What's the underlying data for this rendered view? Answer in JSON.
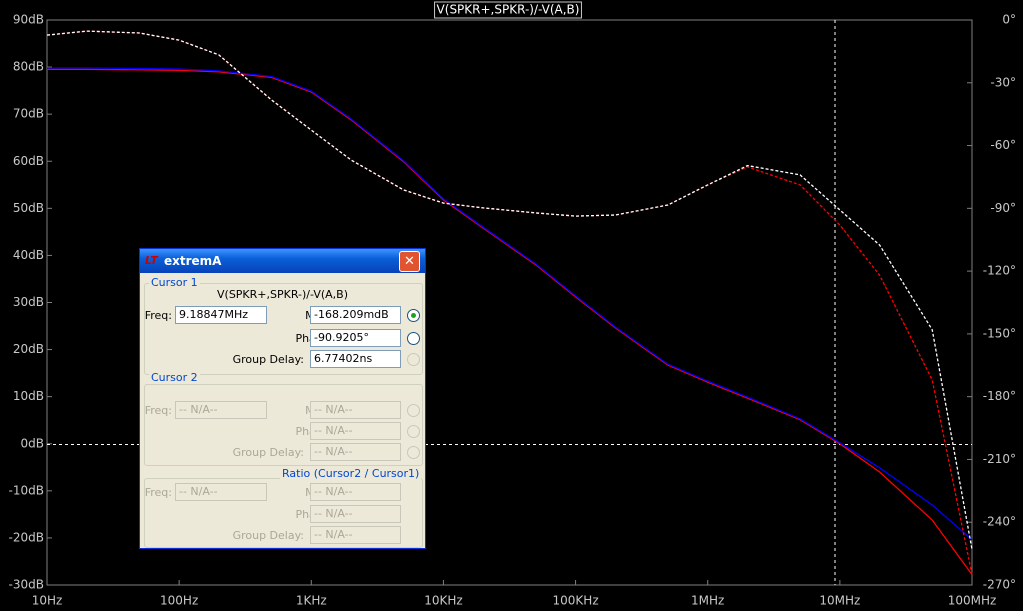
{
  "chart_data": {
    "type": "line",
    "title": "V(SPKR+,SPKR-)/-V(A,B)",
    "x": [
      10,
      20,
      50,
      100,
      200,
      500,
      1000,
      2000,
      5000,
      10000,
      20000,
      50000,
      100000,
      200000,
      500000,
      1000000,
      2000000,
      5000000,
      10000000,
      20000000,
      50000000,
      100000000
    ],
    "xlim": [
      10,
      100000000
    ],
    "log_x": true,
    "xticks": [
      {
        "value": 10,
        "label": "10Hz"
      },
      {
        "value": 100,
        "label": "100Hz"
      },
      {
        "value": 1000,
        "label": "1KHz"
      },
      {
        "value": 10000,
        "label": "10KHz"
      },
      {
        "value": 100000,
        "label": "100KHz"
      },
      {
        "value": 1000000,
        "label": "1MHz"
      },
      {
        "value": 10000000,
        "label": "10MHz"
      },
      {
        "value": 100000000,
        "label": "100MHz"
      }
    ],
    "ylim": [
      -30,
      90
    ],
    "yticks": [
      {
        "value": 90,
        "label": "90dB"
      },
      {
        "value": 80,
        "label": "80dB"
      },
      {
        "value": 70,
        "label": "70dB"
      },
      {
        "value": 60,
        "label": "60dB"
      },
      {
        "value": 50,
        "label": "50dB"
      },
      {
        "value": 40,
        "label": "40dB"
      },
      {
        "value": 30,
        "label": "30dB"
      },
      {
        "value": 20,
        "label": "20dB"
      },
      {
        "value": 10,
        "label": "10dB"
      },
      {
        "value": 0,
        "label": "0dB"
      },
      {
        "value": -10,
        "label": "-10dB"
      },
      {
        "value": -20,
        "label": "-20dB"
      },
      {
        "value": -30,
        "label": "-30dB"
      }
    ],
    "y2lim": [
      -270,
      0
    ],
    "y2ticks": [
      {
        "value": 0,
        "label": "0°"
      },
      {
        "value": -30,
        "label": "-30°"
      },
      {
        "value": -60,
        "label": "-60°"
      },
      {
        "value": -90,
        "label": "-90°"
      },
      {
        "value": -120,
        "label": "-120°"
      },
      {
        "value": -150,
        "label": "-150°"
      },
      {
        "value": -180,
        "label": "-180°"
      },
      {
        "value": -210,
        "label": "-210°"
      },
      {
        "value": -240,
        "label": "-240°"
      },
      {
        "value": -270,
        "label": "-270°"
      }
    ],
    "series": [
      {
        "color": "#ff0000",
        "style": "solid",
        "values": [
          79.5,
          79.5,
          79.4,
          79.3,
          79,
          77.8,
          74.7,
          68.8,
          59.9,
          51.8,
          45.8,
          38,
          31.2,
          24.6,
          16.7,
          13.1,
          9.7,
          5.1,
          0,
          -6,
          -16.2,
          -27.8
        ]
      },
      {
        "color": "#0000ff",
        "style": "solid",
        "values": [
          79.8,
          79.8,
          79.7,
          79.6,
          79.2,
          78,
          74.9,
          69,
          60.1,
          52,
          46,
          38.2,
          31.4,
          24.8,
          16.9,
          13.3,
          9.9,
          5.3,
          0.2,
          -5.1,
          -13,
          -20.4
        ]
      },
      {
        "color": "#ff0000",
        "style": "dashed",
        "axis": "y2",
        "values": [
          -7.2,
          -5.3,
          -6.2,
          -9.6,
          -16.7,
          -38.2,
          -52.6,
          -66.9,
          -81.2,
          -87.5,
          -89.8,
          -92.2,
          -93.7,
          -93.2,
          -88.4,
          -78.8,
          -70.2,
          -78.8,
          -98,
          -121.9,
          -172,
          -265
        ]
      },
      {
        "color": "#ffffff",
        "style": "dashed",
        "axis": "y2",
        "values": [
          -7.2,
          -5.3,
          -6.2,
          -9.6,
          -16.7,
          -38.2,
          -52.6,
          -66.9,
          -81.2,
          -87.5,
          -89.8,
          -92.2,
          -93.7,
          -93.2,
          -88.4,
          -78.8,
          -69.6,
          -74,
          -90.8,
          -107.5,
          -148,
          -253
        ]
      }
    ],
    "cursor": {
      "x": 9188470,
      "y": -0.168209
    }
  },
  "dialog": {
    "title": "extremA",
    "cursor1": {
      "label": "Cursor 1",
      "expression": "V(SPKR+,SPKR-)/-V(A,B)",
      "freq_label": "Freq:",
      "freq": "9.18847MHz",
      "mag_label": "Mag:",
      "mag": "-168.209mdB",
      "phase_label": "Phase:",
      "phase": "-90.9205°",
      "group_delay_label": "Group Delay:",
      "group_delay": "6.77402ns"
    },
    "cursor2": {
      "label": "Cursor 2",
      "freq_label": "Freq:",
      "freq": "-- N/A--",
      "mag_label": "Mag:",
      "mag": "-- N/A--",
      "phase_label": "Phase:",
      "phase": "-- N/A--",
      "group_delay_label": "Group Delay:",
      "group_delay": "-- N/A--"
    },
    "ratio": {
      "label": "Ratio (Cursor2 / Cursor1)",
      "freq_label": "Freq:",
      "freq": "-- N/A--",
      "mag_label": "Mag:",
      "mag": "-- N/A--",
      "phase_label": "Phase:",
      "phase": "-- N/A--",
      "group_delay_label": "Group Delay:",
      "group_delay": "-- N/A--"
    }
  }
}
